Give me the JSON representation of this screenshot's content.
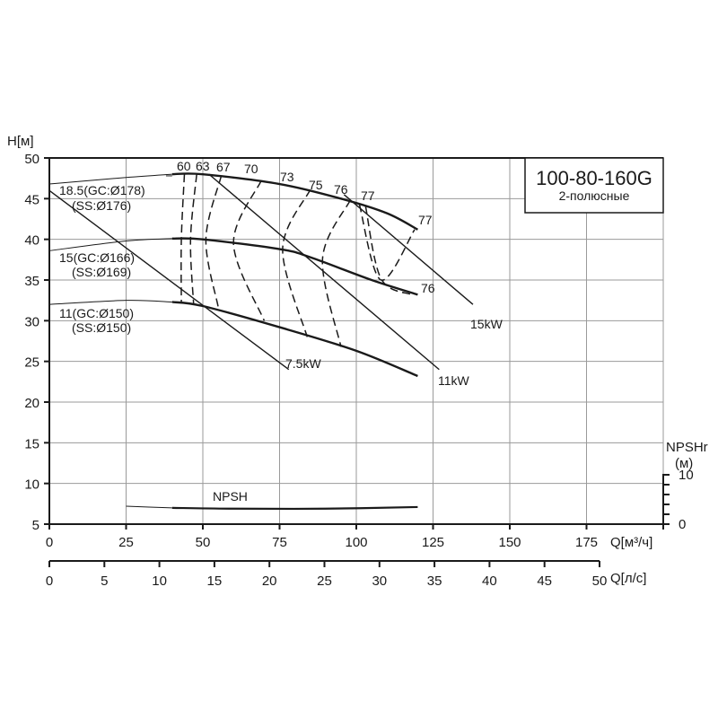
{
  "chart_data": {
    "type": "line",
    "title": "100-80-160G",
    "subtitle": "2-полюсные",
    "xlabel": "Q[м³/ч]",
    "xlabel2": "Q[л/с]",
    "ylabel": "H[м]",
    "ylabel_right": "NPSHr",
    "ylabel_right_unit": "(м)",
    "xlim": [
      0,
      200
    ],
    "ylim": [
      5,
      50
    ],
    "grid": true,
    "x_ticks": [
      0,
      25,
      50,
      75,
      100,
      125,
      150,
      175
    ],
    "x2_ticks": [
      0,
      5,
      10,
      15,
      20,
      25,
      30,
      35,
      40,
      45,
      50
    ],
    "y_ticks": [
      5,
      10,
      15,
      20,
      25,
      30,
      35,
      40,
      45,
      50
    ],
    "npsh_ticks": [
      0,
      10
    ],
    "head_curves": [
      {
        "name": "18.5(GC:Ø178)",
        "name2": "(SS:Ø176)",
        "x": [
          0,
          25,
          40,
          50,
          75,
          95,
          110,
          120
        ],
        "y": [
          46.8,
          47.6,
          48.0,
          48.0,
          46.8,
          45.0,
          43.2,
          41.2
        ]
      },
      {
        "name": "15(GC:Ø166)",
        "name2": "(SS:Ø169)",
        "x": [
          0,
          25,
          40,
          50,
          75,
          85,
          105,
          120
        ],
        "y": [
          38.6,
          39.8,
          40.1,
          40.0,
          38.8,
          37.8,
          35.0,
          33.2
        ]
      },
      {
        "name": "11(GC:Ø150)",
        "name2": "(SS:Ø150)",
        "x": [
          0,
          25,
          40,
          50,
          75,
          100,
          120
        ],
        "y": [
          32.0,
          32.5,
          32.3,
          31.8,
          29.2,
          26.3,
          23.2
        ]
      }
    ],
    "power_lines": [
      {
        "name": "7.5kW",
        "x": [
          0,
          78
        ],
        "y": [
          46.0,
          24.0
        ]
      },
      {
        "name": "11kW",
        "x": [
          52,
          127
        ],
        "y": [
          48.0,
          24.0
        ]
      },
      {
        "name": "15kW",
        "x": [
          96,
          138
        ],
        "y": [
          45.5,
          32.0
        ]
      }
    ],
    "efficiency_labels": [
      "60",
      "63",
      "67",
      "70",
      "73",
      "75",
      "76",
      "77",
      "77",
      "76"
    ],
    "efficiency_curves": [
      {
        "name": "60",
        "x": [
          44,
          43,
          43
        ],
        "y": [
          48.0,
          40.0,
          32.3
        ]
      },
      {
        "name": "63",
        "x": [
          48,
          46,
          47
        ],
        "y": [
          48.0,
          40.0,
          32.0
        ]
      },
      {
        "name": "67",
        "x": [
          56,
          51,
          55
        ],
        "y": [
          47.8,
          40.0,
          31.7
        ]
      },
      {
        "name": "70",
        "x": [
          69,
          60,
          70
        ],
        "y": [
          47.2,
          39.5,
          30.0
        ]
      },
      {
        "name": "73",
        "x": [
          85,
          76,
          84
        ],
        "y": [
          46.1,
          38.8,
          28.0
        ]
      },
      {
        "name": "75",
        "x": [
          98,
          89,
          95
        ],
        "y": [
          44.8,
          37.6,
          26.8
        ]
      },
      {
        "name": "76",
        "x": [
          103,
          108,
          118
        ],
        "y": [
          44.1,
          35.2,
          33.2
        ]
      },
      {
        "name": "77",
        "x": [
          101,
          108,
          119
        ],
        "y": [
          44.3,
          35.0,
          41.2
        ]
      }
    ],
    "npsh": {
      "name": "NPSH",
      "x": [
        25,
        40,
        60,
        90,
        120
      ],
      "y": [
        7.2,
        7.0,
        6.9,
        6.9,
        7.1
      ]
    }
  },
  "labels": {
    "title": "100-80-160G",
    "subtitle": "2-полюсные",
    "ylabel": "H[м]",
    "xlabel": "Q[м³/ч]",
    "xlabel2": "Q[л/с]",
    "npsh_axis": "NPSHr",
    "npsh_unit": "(м)",
    "npsh_curve": "NPSH",
    "curve_185_a": "18.5(GC:Ø178)",
    "curve_185_b": "(SS:Ø176)",
    "curve_15_a": "15(GC:Ø166)",
    "curve_15_b": "(SS:Ø169)",
    "curve_11_a": "11(GC:Ø150)",
    "curve_11_b": "(SS:Ø150)",
    "p75": "7.5kW",
    "p11": "11kW",
    "p15": "15kW",
    "e60": "60",
    "e63": "63",
    "e67": "67",
    "e70": "70",
    "e73": "73",
    "e75": "75",
    "e76": "76",
    "e77": "77",
    "e77b": "77",
    "e76b": "76"
  }
}
